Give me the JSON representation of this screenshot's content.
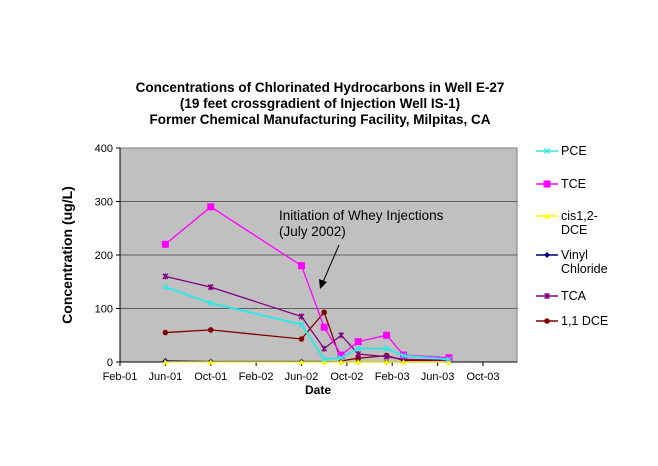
{
  "chart_data": {
    "type": "line",
    "title": [
      "Concentrations of Chlorinated Hydrocarbons in Well E-27",
      "(19 feet crossgradient of Injection Well IS-1)",
      "Former  Chemical Manufacturing Facility, Milpitas, CA"
    ],
    "xlabel": "Date",
    "ylabel": "Concentration  (ug/L)",
    "ylim": [
      0,
      400
    ],
    "yticks": [
      0,
      100,
      200,
      300,
      400
    ],
    "xlim_months_since_jan2001": [
      1,
      36
    ],
    "xticks": [
      {
        "m": 1,
        "label": "Feb-01"
      },
      {
        "m": 5,
        "label": "Jun-01"
      },
      {
        "m": 9,
        "label": "Oct-01"
      },
      {
        "m": 13,
        "label": "Feb-02"
      },
      {
        "m": 17,
        "label": "Jun-02"
      },
      {
        "m": 21,
        "label": "Oct-02"
      },
      {
        "m": 25,
        "label": "Feb-03"
      },
      {
        "m": 29,
        "label": "Jun-03"
      },
      {
        "m": 33,
        "label": "Oct-03"
      }
    ],
    "x_months": [
      5,
      9,
      17,
      19,
      20.5,
      22,
      24.5,
      26,
      30
    ],
    "x_dates": [
      "Jun-01",
      "Oct-01",
      "Jun-02",
      "Aug-02",
      "Sep-02",
      "Nov-02",
      "Jan-03",
      "Mar-03",
      "Jul-03"
    ],
    "series": [
      {
        "name": "PCE",
        "color": "#33e6e6",
        "marker": "x",
        "values": [
          140,
          110,
          70,
          5,
          8,
          25,
          25,
          12,
          5
        ]
      },
      {
        "name": "TCE",
        "color": "#ff00ff",
        "marker": "square",
        "values": [
          220,
          290,
          180,
          65,
          13,
          38,
          50,
          13,
          8
        ]
      },
      {
        "name": "cis1,2-DCE",
        "color": "#ffff00",
        "marker": "triangle",
        "values": [
          0,
          0,
          0,
          0,
          0,
          0,
          0,
          0,
          0
        ]
      },
      {
        "name": "Vinyl Chloride",
        "color": "#000080",
        "marker": "diamond",
        "values": [
          2,
          1,
          1,
          1,
          0,
          0,
          0,
          0,
          0
        ]
      },
      {
        "name": "TCA",
        "color": "#800080",
        "marker": "star",
        "values": [
          160,
          140,
          85,
          25,
          50,
          15,
          10,
          5,
          3
        ]
      },
      {
        "name": "1,1 DCE",
        "color": "#800000",
        "marker": "circle",
        "values": [
          55,
          60,
          43,
          93,
          2,
          7,
          12,
          3,
          3
        ]
      }
    ],
    "legend_position": "right",
    "annotation": [
      "Initiation of Whey Injections",
      "(July 2002)"
    ],
    "plot_bg": "#c0c0c0",
    "grid": true
  }
}
